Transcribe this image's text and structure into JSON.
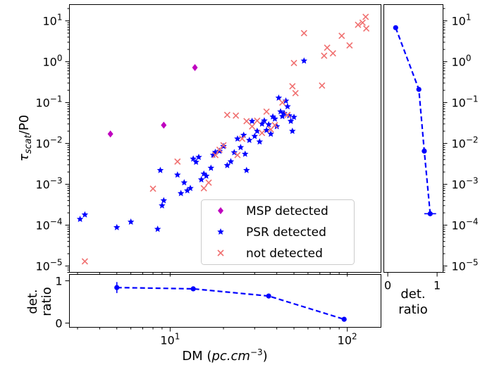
{
  "chart_data": [
    {
      "panel": "main-scatter",
      "type": "scatter",
      "x_scale": "log",
      "y_scale": "log",
      "xlim": [
        2.7,
        155
      ],
      "ylim": [
        7e-06,
        25
      ],
      "ylabel_main": "τ",
      "ylabel_sub": "scat",
      "ylabel_tail": "/P0",
      "y_ticks": [
        {
          "value": 1e-05,
          "base": "10",
          "exp": "−5"
        },
        {
          "value": 0.0001,
          "base": "10",
          "exp": "−4"
        },
        {
          "value": 0.001,
          "base": "10",
          "exp": "−3"
        },
        {
          "value": 0.01,
          "base": "10",
          "exp": "−2"
        },
        {
          "value": 0.1,
          "base": "10",
          "exp": "−1"
        },
        {
          "value": 1,
          "base": "10",
          "exp": "0"
        },
        {
          "value": 10,
          "base": "10",
          "exp": "1"
        }
      ],
      "legend_position": "lower-right",
      "series": [
        {
          "name": "MSP detected",
          "marker": "diamond",
          "color": "#bf00bf",
          "points": [
            [
              4.6,
              0.017
            ],
            [
              9.2,
              0.028
            ],
            [
              13.8,
              0.72
            ]
          ]
        },
        {
          "name": "PSR detected",
          "marker": "star",
          "color": "#0000ff",
          "points": [
            [
              3.1,
              0.00014
            ],
            [
              3.3,
              0.00018
            ],
            [
              5.0,
              8.8e-05
            ],
            [
              6.0,
              0.00012
            ],
            [
              8.5,
              8e-05
            ],
            [
              8.8,
              0.0022
            ],
            [
              9.0,
              0.0003
            ],
            [
              9.2,
              0.0004
            ],
            [
              11.0,
              0.0017
            ],
            [
              11.5,
              0.0006
            ],
            [
              12.0,
              0.0011
            ],
            [
              12.5,
              0.0007
            ],
            [
              13.0,
              0.0008
            ],
            [
              13.5,
              0.0042
            ],
            [
              14.0,
              0.0035
            ],
            [
              14.5,
              0.0046
            ],
            [
              15.0,
              0.0013
            ],
            [
              15.5,
              0.0018
            ],
            [
              16.0,
              0.0016
            ],
            [
              17.0,
              0.0025
            ],
            [
              17.5,
              0.0052
            ],
            [
              18.0,
              0.0061
            ],
            [
              19.0,
              0.0065
            ],
            [
              20.0,
              0.0085
            ],
            [
              21.0,
              0.0029
            ],
            [
              22.0,
              0.0036
            ],
            [
              23.0,
              0.006
            ],
            [
              24.0,
              0.013
            ],
            [
              25.0,
              0.008
            ],
            [
              26.0,
              0.016
            ],
            [
              26.5,
              0.0055
            ],
            [
              27.0,
              0.0022
            ],
            [
              28.0,
              0.012
            ],
            [
              29.0,
              0.035
            ],
            [
              30.0,
              0.015
            ],
            [
              31.0,
              0.02
            ],
            [
              32.0,
              0.011
            ],
            [
              33.0,
              0.03
            ],
            [
              34.0,
              0.036
            ],
            [
              35.0,
              0.021
            ],
            [
              36.0,
              0.029
            ],
            [
              37.0,
              0.017
            ],
            [
              38.0,
              0.045
            ],
            [
              39.0,
              0.04
            ],
            [
              40.0,
              0.026
            ],
            [
              41.0,
              0.13
            ],
            [
              42.0,
              0.06
            ],
            [
              43.0,
              0.046
            ],
            [
              44.0,
              0.055
            ],
            [
              45.0,
              0.11
            ],
            [
              46.0,
              0.08
            ],
            [
              47.0,
              0.048
            ],
            [
              48.0,
              0.035
            ],
            [
              49.0,
              0.02
            ],
            [
              50.0,
              0.044
            ],
            [
              57.0,
              1.05
            ]
          ]
        },
        {
          "name": "not detected",
          "marker": "x",
          "color": "#f07070",
          "points": [
            [
              3.3,
              1.3e-05
            ],
            [
              8.0,
              0.00078
            ],
            [
              11.0,
              0.0036
            ],
            [
              15.5,
              0.0008
            ],
            [
              16.5,
              0.0011
            ],
            [
              18.0,
              0.0052
            ],
            [
              19.0,
              0.007
            ],
            [
              20.0,
              0.009
            ],
            [
              21.0,
              0.05
            ],
            [
              23.5,
              0.048
            ],
            [
              24.0,
              0.0052
            ],
            [
              25.5,
              0.013
            ],
            [
              27.0,
              0.035
            ],
            [
              29.0,
              0.026
            ],
            [
              31.0,
              0.036
            ],
            [
              33.0,
              0.018
            ],
            [
              35.0,
              0.06
            ],
            [
              37.0,
              0.022
            ],
            [
              39.0,
              0.028
            ],
            [
              43.0,
              0.1
            ],
            [
              46.0,
              0.05
            ],
            [
              49.0,
              0.25
            ],
            [
              50.0,
              0.93
            ],
            [
              51.0,
              0.17
            ],
            [
              57.0,
              5.0
            ],
            [
              72.0,
              0.26
            ],
            [
              74.0,
              1.4
            ],
            [
              77.0,
              2.2
            ],
            [
              83.0,
              1.6
            ],
            [
              93.0,
              4.3
            ],
            [
              103.0,
              2.5
            ],
            [
              115.0,
              8.0
            ],
            [
              122.0,
              9.0
            ],
            [
              127.0,
              12.5
            ],
            [
              128.0,
              6.5
            ]
          ]
        }
      ]
    },
    {
      "panel": "bottom-ratio",
      "type": "line",
      "x_scale": "log",
      "xlim": [
        2.7,
        155
      ],
      "ylim": [
        -0.1,
        1.15
      ],
      "x_ticks": [
        {
          "value": 10,
          "base": "10",
          "exp": "1"
        },
        {
          "value": 100,
          "base": "10",
          "exp": "2"
        }
      ],
      "y_ticks": [
        {
          "value": 0,
          "label": "0"
        },
        {
          "value": 1,
          "label": "1"
        }
      ],
      "ylabel_lines": [
        "det.",
        "ratio"
      ],
      "xlabel_prefix": "DM (",
      "xlabel_units": "pc.cm",
      "xlabel_exp": "−3",
      "xlabel_suffix": ")",
      "series": [
        {
          "color": "#0000ff",
          "line_style": "dashed",
          "points": [
            [
              5.0,
              0.84
            ],
            [
              13.5,
              0.81
            ],
            [
              36.0,
              0.64
            ],
            [
              96.0,
              0.09
            ]
          ],
          "errors": [
            0.13,
            0.03,
            0.03,
            0.04
          ]
        }
      ]
    },
    {
      "panel": "right-ratio",
      "type": "line",
      "y_scale": "log",
      "ylim": [
        7e-06,
        25
      ],
      "xlim": [
        -0.08,
        1.12
      ],
      "x_ticks": [
        {
          "value": 0,
          "label": "0"
        },
        {
          "value": 1,
          "label": "1"
        }
      ],
      "xlabel_lines": [
        "det.",
        "ratio"
      ],
      "series": [
        {
          "color": "#0000ff",
          "line_style": "dashed",
          "points": [
            [
              0.16,
              6.8
            ],
            [
              0.63,
              0.21
            ],
            [
              0.74,
              0.0065
            ],
            [
              0.86,
              0.00019
            ]
          ],
          "xerrors": [
            0.04,
            0.03,
            0.02,
            0.12
          ]
        }
      ]
    }
  ]
}
